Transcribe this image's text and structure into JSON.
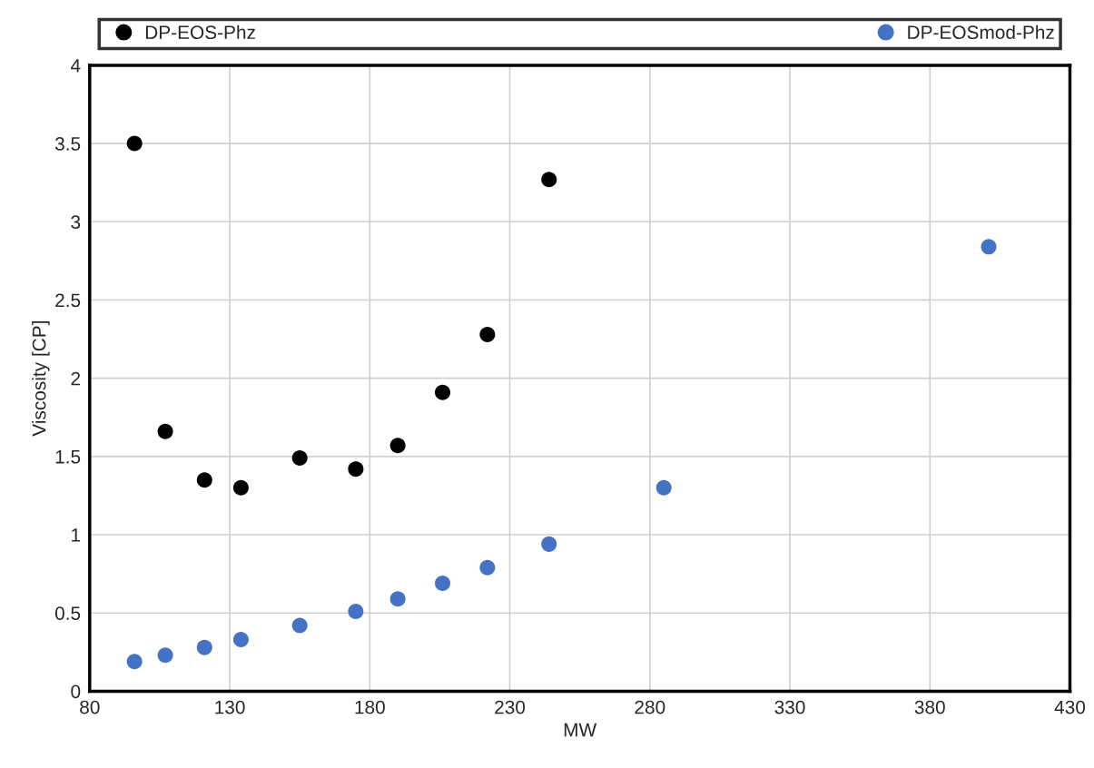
{
  "chart_data": {
    "type": "scatter",
    "xlabel": "MW",
    "ylabel": "Viscosity [CP]",
    "xlim": [
      80,
      430
    ],
    "xticks": [
      80,
      130,
      180,
      230,
      280,
      330,
      380,
      430
    ],
    "ylim": [
      0,
      4
    ],
    "yticks": [
      0,
      0.5,
      1,
      1.5,
      2,
      2.5,
      3,
      3.5,
      4
    ],
    "grid": true,
    "legend": "top",
    "marker": "circle",
    "series": [
      {
        "name": "DP-EOS-Phz",
        "color": "#000000",
        "x": [
          96,
          107,
          121,
          134,
          155,
          175,
          190,
          206,
          222,
          244
        ],
        "values": [
          3.5,
          1.66,
          1.35,
          1.3,
          1.49,
          1.42,
          1.57,
          1.91,
          2.28,
          3.27
        ]
      },
      {
        "name": "DP-EOSmod-Phz",
        "color": "#4472c4",
        "x": [
          96,
          107,
          121,
          134,
          155,
          175,
          190,
          206,
          222,
          244,
          285,
          401
        ],
        "values": [
          0.19,
          0.23,
          0.28,
          0.33,
          0.42,
          0.51,
          0.59,
          0.69,
          0.79,
          0.94,
          1.3,
          2.84
        ]
      }
    ]
  }
}
